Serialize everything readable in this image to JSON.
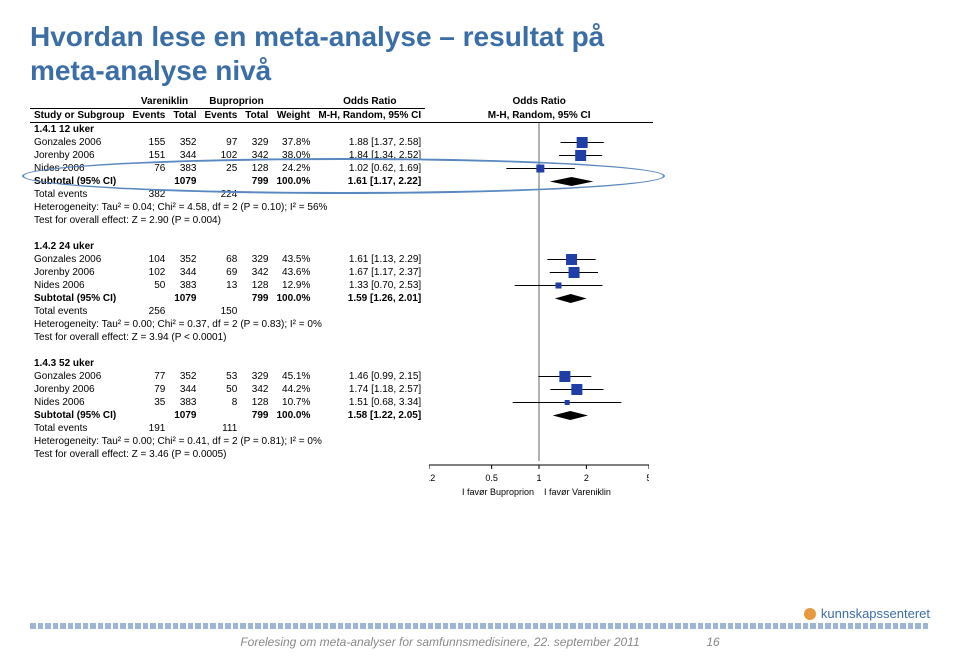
{
  "title_line1": "Hvordan lese en meta-analyse – resultat på",
  "title_line2": "meta-analyse nivå",
  "headers": {
    "study": "Study or Subgroup",
    "grp1_name": "Vareniklin",
    "grp2_name": "Buproprion",
    "events": "Events",
    "total": "Total",
    "weight": "Weight",
    "or": "Odds Ratio",
    "method": "M-H, Random, 95% CI"
  },
  "sections": [
    {
      "label": "1.4.1 12 uker",
      "rows": [
        {
          "study": "Gonzales 2006",
          "e1": "155",
          "t1": "352",
          "e2": "97",
          "t2": "329",
          "w": "37.8%",
          "or": "1.88 [1.37, 2.58]",
          "pt": 1.88,
          "lo": 1.37,
          "hi": 2.58,
          "sz": 11
        },
        {
          "study": "Jorenby 2006",
          "e1": "151",
          "t1": "344",
          "e2": "102",
          "t2": "342",
          "w": "38.0%",
          "or": "1.84 [1.34, 2.52]",
          "pt": 1.84,
          "lo": 1.34,
          "hi": 2.52,
          "sz": 11
        },
        {
          "study": "Nides 2006",
          "e1": "76",
          "t1": "383",
          "e2": "25",
          "t2": "128",
          "w": "24.2%",
          "or": "1.02 [0.62, 1.69]",
          "pt": 1.02,
          "lo": 0.62,
          "hi": 1.69,
          "sz": 8
        }
      ],
      "subtotal": {
        "t1": "1079",
        "t2": "799",
        "w": "100.0%",
        "or": "1.61 [1.17, 2.22]",
        "pt": 1.61,
        "lo": 1.17,
        "hi": 2.22
      },
      "totalevents": {
        "e1": "382",
        "e2": "224"
      },
      "het": "Heterogeneity: Tau² = 0.04; Chi² = 4.58, df = 2 (P = 0.10); I² = 56%",
      "test": "Test for overall effect: Z = 2.90 (P = 0.004)"
    },
    {
      "label": "1.4.2 24 uker",
      "rows": [
        {
          "study": "Gonzales 2006",
          "e1": "104",
          "t1": "352",
          "e2": "68",
          "t2": "329",
          "w": "43.5%",
          "or": "1.61 [1.13, 2.29]",
          "pt": 1.61,
          "lo": 1.13,
          "hi": 2.29,
          "sz": 11
        },
        {
          "study": "Jorenby 2006",
          "e1": "102",
          "t1": "344",
          "e2": "69",
          "t2": "342",
          "w": "43.6%",
          "or": "1.67 [1.17, 2.37]",
          "pt": 1.67,
          "lo": 1.17,
          "hi": 2.37,
          "sz": 11
        },
        {
          "study": "Nides 2006",
          "e1": "50",
          "t1": "383",
          "e2": "13",
          "t2": "128",
          "w": "12.9%",
          "or": "1.33 [0.70, 2.53]",
          "pt": 1.33,
          "lo": 0.7,
          "hi": 2.53,
          "sz": 6
        }
      ],
      "subtotal": {
        "t1": "1079",
        "t2": "799",
        "w": "100.0%",
        "or": "1.59 [1.26, 2.01]",
        "pt": 1.59,
        "lo": 1.26,
        "hi": 2.01
      },
      "totalevents": {
        "e1": "256",
        "e2": "150"
      },
      "het": "Heterogeneity: Tau² = 0.00; Chi² = 0.37, df = 2 (P = 0.83); I² = 0%",
      "test": "Test for overall effect: Z = 3.94 (P < 0.0001)"
    },
    {
      "label": "1.4.3 52 uker",
      "rows": [
        {
          "study": "Gonzales 2006",
          "e1": "77",
          "t1": "352",
          "e2": "53",
          "t2": "329",
          "w": "45.1%",
          "or": "1.46 [0.99, 2.15]",
          "pt": 1.46,
          "lo": 0.99,
          "hi": 2.15,
          "sz": 11
        },
        {
          "study": "Jorenby 2006",
          "e1": "79",
          "t1": "344",
          "e2": "50",
          "t2": "342",
          "w": "44.2%",
          "or": "1.74 [1.18, 2.57]",
          "pt": 1.74,
          "lo": 1.18,
          "hi": 2.57,
          "sz": 11
        },
        {
          "study": "Nides 2006",
          "e1": "35",
          "t1": "383",
          "e2": "8",
          "t2": "128",
          "w": "10.7%",
          "or": "1.51 [0.68, 3.34]",
          "pt": 1.51,
          "lo": 0.68,
          "hi": 3.34,
          "sz": 5
        }
      ],
      "subtotal": {
        "t1": "1079",
        "t2": "799",
        "w": "100.0%",
        "or": "1.58 [1.22, 2.05]",
        "pt": 1.58,
        "lo": 1.22,
        "hi": 2.05
      },
      "totalevents": {
        "e1": "191",
        "e2": "111"
      },
      "het": "Heterogeneity: Tau² = 0.00; Chi² = 0.41, df = 2 (P = 0.81); I² = 0%",
      "test": "Test for overall effect: Z = 3.46 (P = 0.0005)"
    }
  ],
  "axis": {
    "ticks": [
      "0.2",
      "0.5",
      "1",
      "2",
      "5"
    ],
    "min": 0.2,
    "max": 5,
    "left_label": "I favør Buproprion",
    "right_label": "I favør Vareniklin"
  },
  "colors": {
    "title": "#3b6ea5",
    "marker": "#1f3fa6",
    "diamond": "#000000",
    "line": "#000000"
  },
  "footer": "Forelesing om meta-analyser for samfunnsmedisinere, 22. september 2011",
  "page": "16",
  "logo_text": "kunnskapssenteret"
}
